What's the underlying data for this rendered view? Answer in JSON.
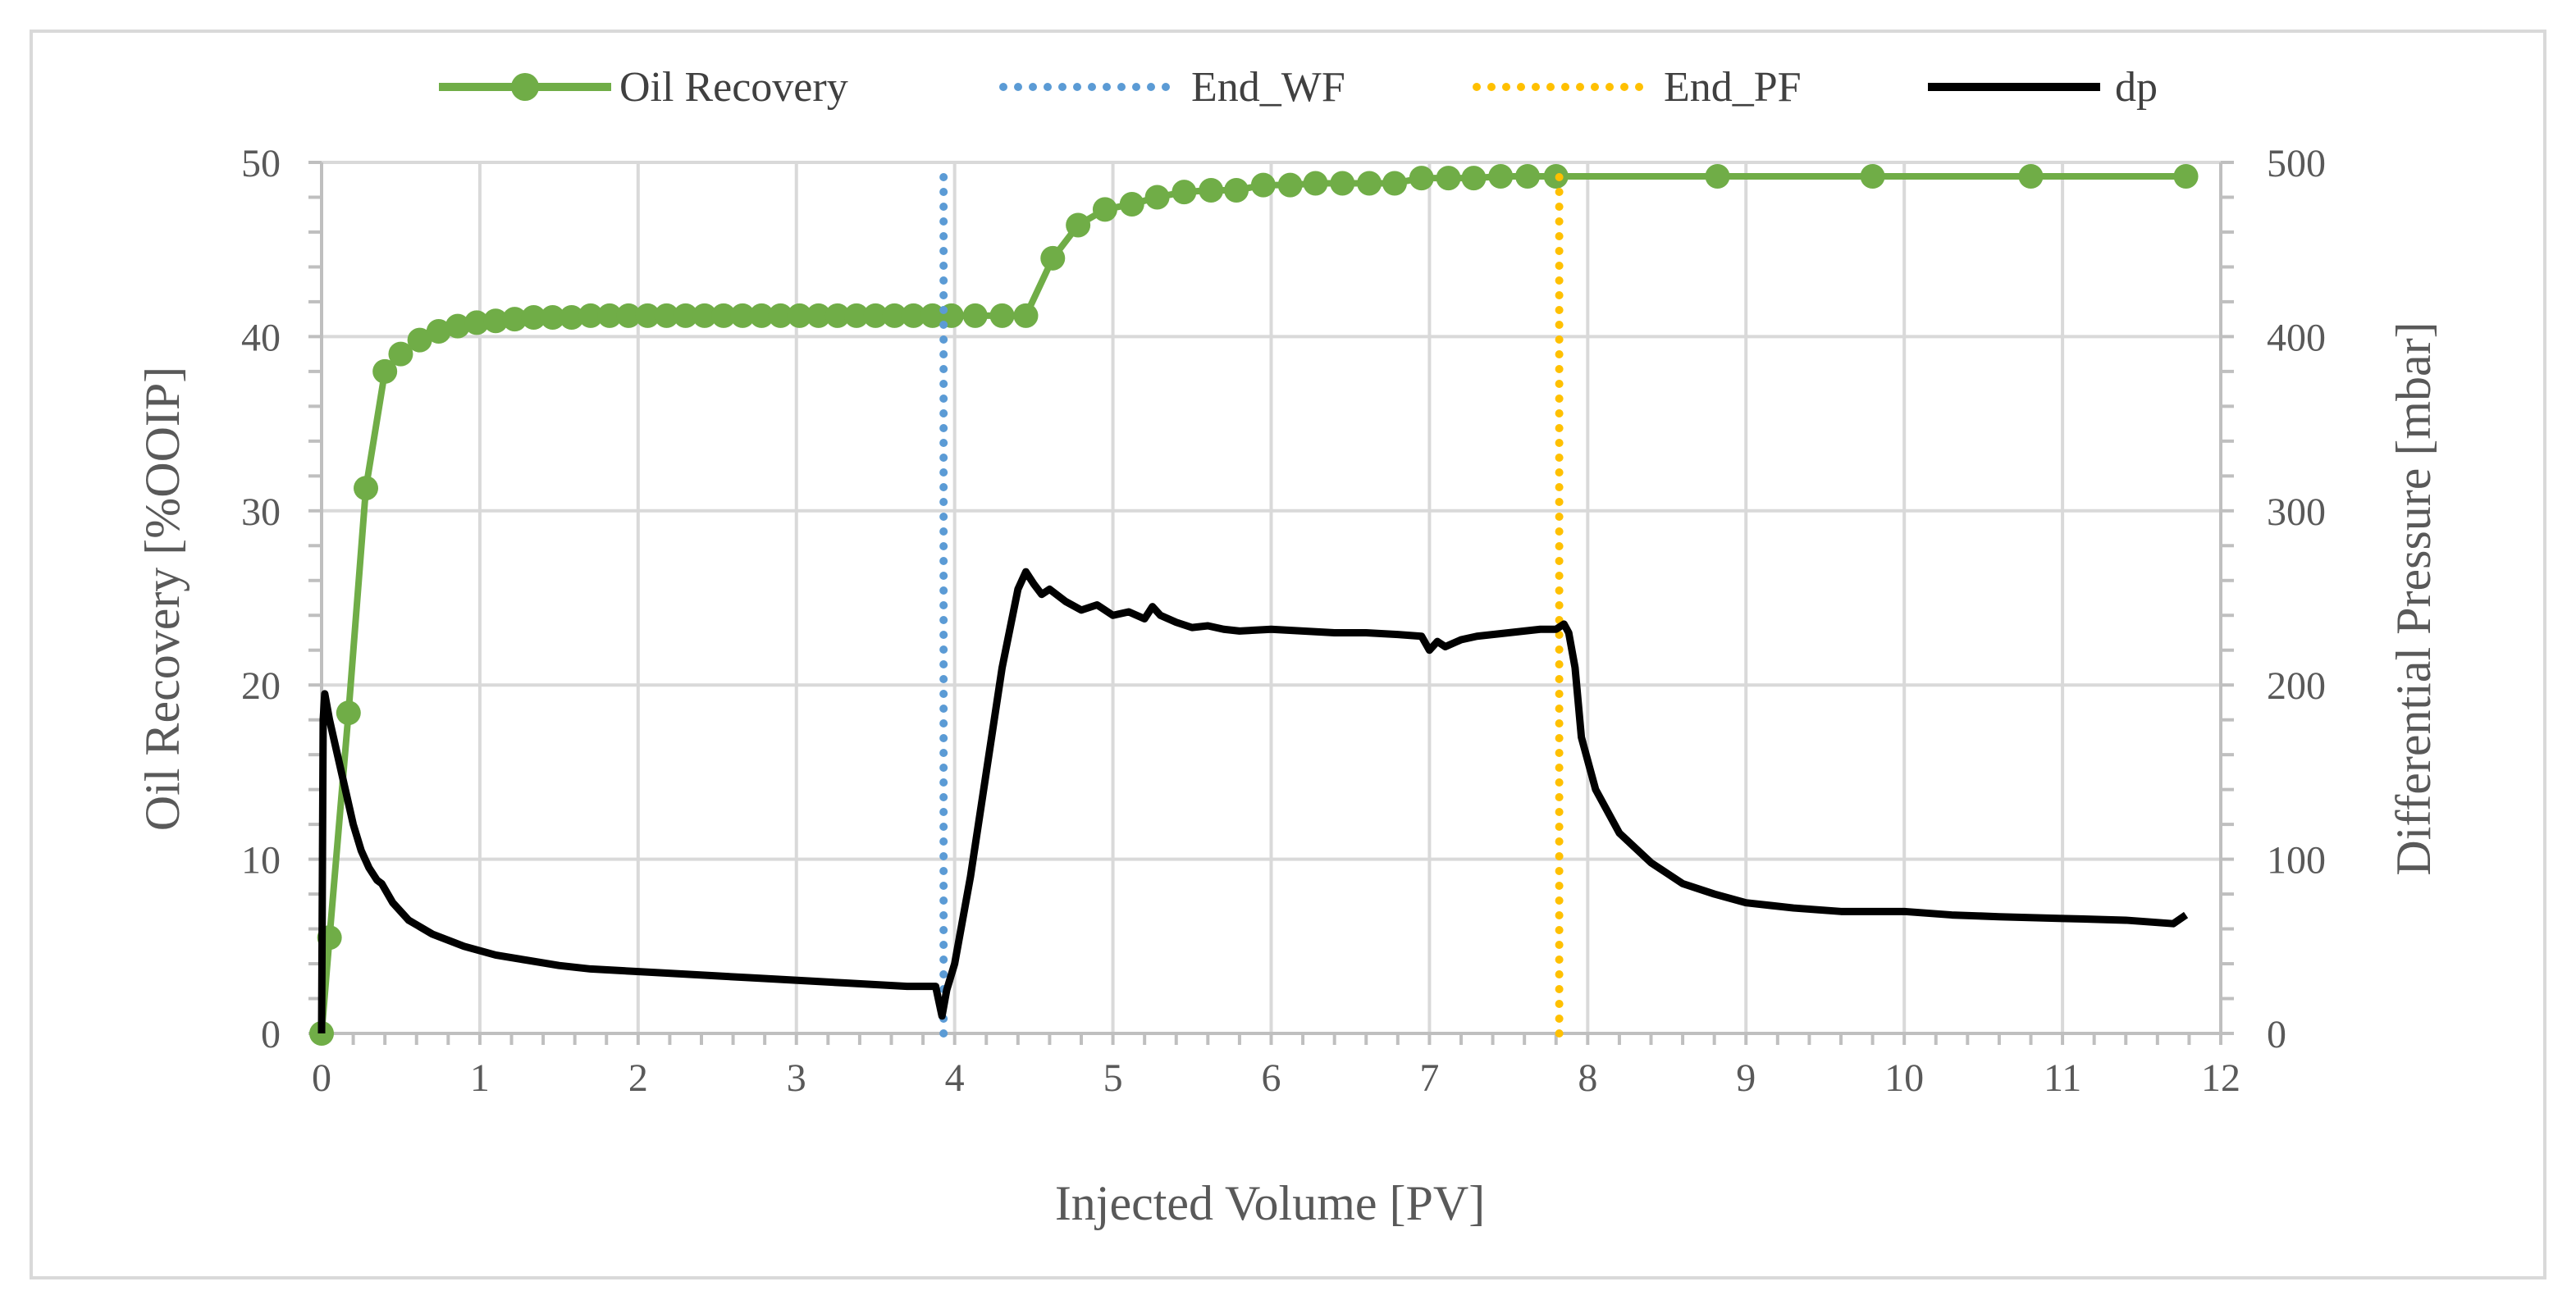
{
  "chart_data": {
    "type": "line",
    "title": "",
    "xlabel": "Injected Volume [PV]",
    "ylabel_left": "Oil Recovery [%OOIP]",
    "ylabel_right": "Differential Pressure [mbar]",
    "xlim": [
      0,
      12
    ],
    "ylim_left": [
      0,
      50
    ],
    "ylim_right": [
      0,
      500
    ],
    "x_ticks": [
      "0",
      "1",
      "2",
      "3",
      "4",
      "5",
      "6",
      "7",
      "8",
      "9",
      "10",
      "11",
      "12"
    ],
    "y_left_ticks": [
      "0",
      "10",
      "20",
      "30",
      "40",
      "50"
    ],
    "y_right_ticks": [
      "0",
      "100",
      "200",
      "300",
      "400",
      "500"
    ],
    "grid": true,
    "legend_position": "top",
    "colors": {
      "oil_recovery": "#70ad47",
      "end_wf": "#5b9bd5",
      "end_pf": "#ffc000",
      "dp": "#000000",
      "grid": "#d9d9d9",
      "frame": "#d9d9d9"
    },
    "series": [
      {
        "name": "Oil Recovery",
        "axis": "left",
        "style": "line-marker",
        "x": [
          0,
          0.05,
          0.17,
          0.28,
          0.4,
          0.5,
          0.62,
          0.74,
          0.86,
          0.98,
          1.1,
          1.22,
          1.34,
          1.46,
          1.58,
          1.7,
          1.82,
          1.94,
          2.06,
          2.18,
          2.3,
          2.42,
          2.54,
          2.66,
          2.78,
          2.9,
          3.02,
          3.14,
          3.26,
          3.38,
          3.5,
          3.62,
          3.74,
          3.86,
          3.98,
          4.13,
          4.3,
          4.45,
          4.62,
          4.78,
          4.95,
          5.12,
          5.28,
          5.45,
          5.62,
          5.78,
          5.95,
          6.12,
          6.28,
          6.45,
          6.62,
          6.78,
          6.95,
          7.12,
          7.28,
          7.45,
          7.62,
          7.8,
          8.82,
          9.8,
          10.8,
          11.78
        ],
        "values": [
          0,
          5.5,
          18.4,
          31.3,
          38.0,
          39.0,
          39.8,
          40.3,
          40.6,
          40.8,
          40.9,
          41.0,
          41.1,
          41.1,
          41.1,
          41.2,
          41.2,
          41.2,
          41.2,
          41.2,
          41.2,
          41.2,
          41.2,
          41.2,
          41.2,
          41.2,
          41.2,
          41.2,
          41.2,
          41.2,
          41.2,
          41.2,
          41.2,
          41.2,
          41.2,
          41.2,
          41.2,
          41.2,
          44.5,
          46.4,
          47.3,
          47.6,
          48.0,
          48.3,
          48.4,
          48.4,
          48.7,
          48.7,
          48.8,
          48.8,
          48.8,
          48.8,
          49.1,
          49.1,
          49.1,
          49.2,
          49.2,
          49.2,
          49.2,
          49.2,
          49.2,
          49.2
        ]
      },
      {
        "name": "End_WF",
        "axis": "left",
        "style": "dotted-vertical",
        "x": [
          3.93,
          3.93
        ],
        "values": [
          0,
          50
        ]
      },
      {
        "name": "End_PF",
        "axis": "left",
        "style": "dotted-vertical",
        "x": [
          7.82,
          7.82
        ],
        "values": [
          0,
          50
        ]
      },
      {
        "name": "dp",
        "axis": "right",
        "style": "line",
        "x": [
          0,
          0.01,
          0.02,
          0.05,
          0.1,
          0.15,
          0.2,
          0.25,
          0.3,
          0.35,
          0.38,
          0.45,
          0.55,
          0.7,
          0.9,
          1.1,
          1.3,
          1.5,
          1.7,
          1.9,
          2.1,
          2.3,
          2.5,
          2.7,
          2.9,
          3.1,
          3.3,
          3.5,
          3.7,
          3.88,
          3.92,
          3.95,
          4.0,
          4.1,
          4.2,
          4.3,
          4.4,
          4.45,
          4.5,
          4.55,
          4.6,
          4.7,
          4.8,
          4.9,
          5.0,
          5.1,
          5.2,
          5.25,
          5.3,
          5.4,
          5.5,
          5.6,
          5.7,
          5.8,
          6.0,
          6.2,
          6.4,
          6.6,
          6.8,
          6.95,
          7.0,
          7.05,
          7.1,
          7.2,
          7.3,
          7.4,
          7.5,
          7.6,
          7.7,
          7.8,
          7.85,
          7.88,
          7.92,
          7.96,
          8.05,
          8.2,
          8.4,
          8.6,
          8.8,
          9.0,
          9.3,
          9.6,
          10.0,
          10.3,
          10.6,
          11.0,
          11.4,
          11.7,
          11.78
        ],
        "values": [
          0,
          180,
          195,
          180,
          160,
          140,
          120,
          105,
          95,
          88,
          86,
          75,
          65,
          57,
          50,
          45,
          42,
          39,
          37,
          36,
          35,
          34,
          33,
          32,
          31,
          30,
          29,
          28,
          27,
          27,
          10,
          25,
          40,
          90,
          150,
          210,
          255,
          265,
          258,
          252,
          255,
          248,
          243,
          246,
          240,
          242,
          238,
          245,
          240,
          236,
          233,
          234,
          232,
          231,
          232,
          231,
          230,
          230,
          229,
          228,
          220,
          225,
          222,
          226,
          228,
          229,
          230,
          231,
          232,
          232,
          235,
          230,
          210,
          170,
          140,
          115,
          98,
          86,
          80,
          75,
          72,
          70,
          70,
          68,
          67,
          66,
          65,
          63,
          68
        ]
      }
    ]
  }
}
